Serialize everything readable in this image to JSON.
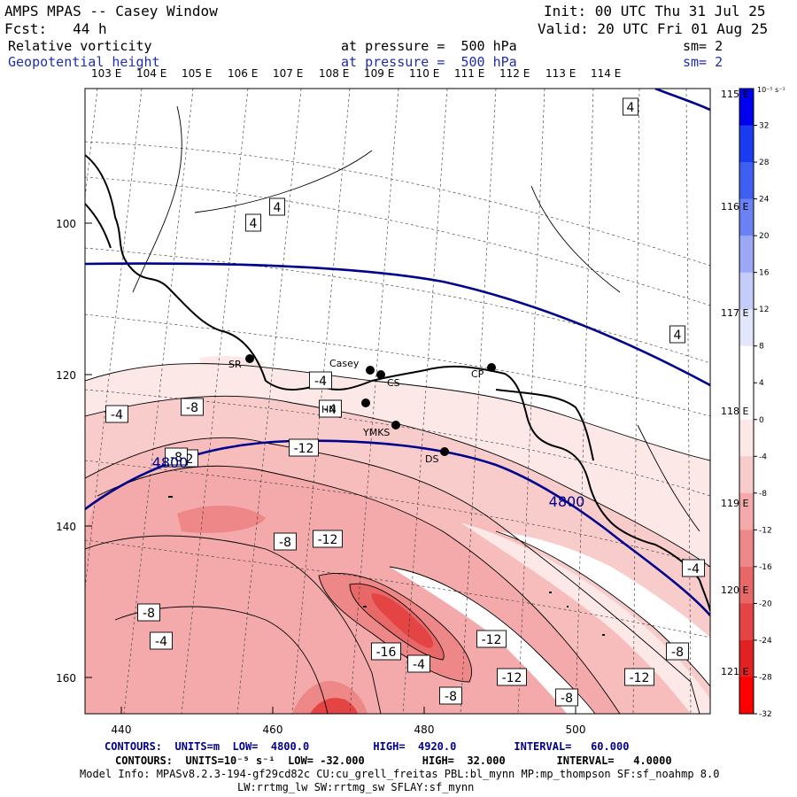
{
  "header": {
    "title": "AMPS MPAS -- Casey Window",
    "init": "Init: 00 UTC Thu 31 Jul 25",
    "fcst": "Fcst:   44 h",
    "valid": "Valid: 20 UTC Fri 01 Aug 25",
    "field1_name": "Relative vorticity",
    "field1_level": "at pressure =  500 hPa",
    "field1_sm": "sm= 2",
    "field2_name": "Geopotential height",
    "field2_level": "at pressure =  500 hPa",
    "field2_sm": "sm= 2"
  },
  "top_lon_labels": [
    "103 E",
    "104 E",
    "105 E",
    "106 E",
    "107 E",
    "108 E",
    "109 E",
    "110 E",
    "111 E",
    "112 E",
    "113 E",
    "114 E"
  ],
  "right_lon_labels": [
    "115 E",
    "116 E",
    "117 E",
    "118 E",
    "119 E",
    "120 E",
    "121 E"
  ],
  "left_axis_labels": [
    "100",
    "120",
    "140",
    "160"
  ],
  "bottom_axis_labels": [
    "440",
    "460",
    "480",
    "500"
  ],
  "stations": [
    "SR",
    "Casey",
    "CS",
    "HN",
    "YMKS",
    "DS",
    "CP"
  ],
  "height_contour_labels": [
    "4800",
    "4800"
  ],
  "vorticity_labels": [
    "4",
    "4",
    "4",
    "4",
    "-4",
    "-4",
    "-4",
    "-8",
    "-12",
    "-12",
    "-12",
    "-8",
    "-12",
    "-8",
    "-4",
    "-8",
    "-4",
    "-16",
    "-12",
    "-8",
    "-8",
    "-12",
    "-8",
    "-4"
  ],
  "colorbar": {
    "unit_label": "10⁻⁵ s⁻¹",
    "ticks": [
      "32",
      "28",
      "24",
      "20",
      "16",
      "12",
      "8",
      "4",
      "0",
      "-4",
      "-8",
      "-12",
      "-16",
      "-20",
      "-24",
      "-28",
      "-32"
    ],
    "colors": [
      "#0000ee",
      "#1a3cf0",
      "#3f5ff2",
      "#6b82f4",
      "#9aa8f6",
      "#c4ccf9",
      "#e3e7fc",
      "#ffffff",
      "#ffffff",
      "#fde8e8",
      "#f9cccc",
      "#f4aaaa",
      "#ee8888",
      "#e86868",
      "#e44444",
      "#e22222",
      "#ff0000"
    ]
  },
  "footer": {
    "contours1": "CONTOURS:  UNITS=m  LOW=  4800.0          HIGH=  4920.0         INTERVAL=   60.000",
    "contours2": "CONTOURS:  UNITS=10⁻⁵ s⁻¹  LOW= -32.000         HIGH=  32.000        INTERVAL=   4.0000",
    "model_info": "Model Info: MPASv8.2.3-194-gf29cd82c CU:cu_grell_freitas PBL:bl_mynn MP:mp_thompson SF:sf_noahmp 8.0",
    "model_info2": "LW:rrtmg_lw SW:rrtmg_sw SFLAY:sf_mynn"
  },
  "colors": {
    "height_contour": "#00008b",
    "header_blue": "#1f2db0"
  }
}
